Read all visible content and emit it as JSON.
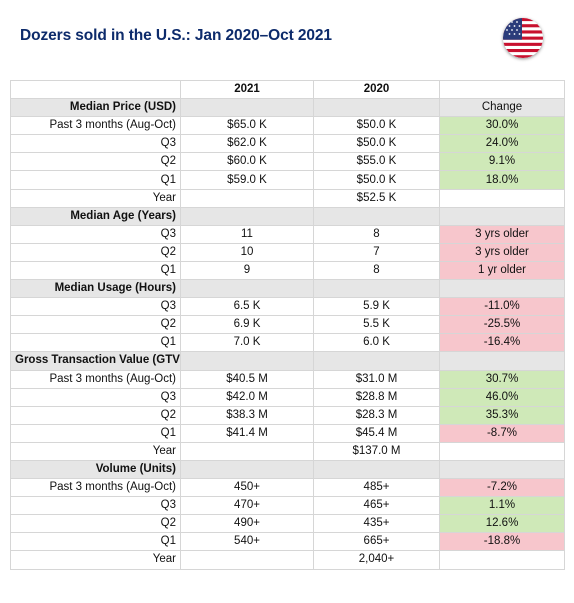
{
  "title": "Dozers sold in the U.S.: Jan 2020–Oct 2021",
  "icons": {
    "flag": "us-flag-icon"
  },
  "colors": {
    "title": "#0d2b6b",
    "positive": "#cfe9b8",
    "negative": "#f7c6cc",
    "section": "#e6e6e6"
  },
  "columns": [
    "",
    "2021",
    "2020",
    ""
  ],
  "change_label": "Change",
  "sections": [
    {
      "title": "Median Price (USD)",
      "align": "right",
      "show_change_label": true,
      "rows": [
        {
          "label": "Past 3 months (Aug-Oct)",
          "y2021": "$65.0 K",
          "y2020": "$50.0 K",
          "change": "30.0%",
          "tone": "pos"
        },
        {
          "label": "Q3",
          "y2021": "$62.0 K",
          "y2020": "$50.0 K",
          "change": "24.0%",
          "tone": "pos"
        },
        {
          "label": "Q2",
          "y2021": "$60.0 K",
          "y2020": "$55.0 K",
          "change": "9.1%",
          "tone": "pos"
        },
        {
          "label": "Q1",
          "y2021": "$59.0 K",
          "y2020": "$50.0 K",
          "change": "18.0%",
          "tone": "pos"
        },
        {
          "label": "Year",
          "y2021": "",
          "y2020": "$52.5 K",
          "change": "",
          "tone": ""
        }
      ]
    },
    {
      "title": "Median Age (Years)",
      "align": "right",
      "show_change_label": false,
      "rows": [
        {
          "label": "Q3",
          "y2021": "11",
          "y2020": "8",
          "change": "3 yrs older",
          "tone": "neg"
        },
        {
          "label": "Q2",
          "y2021": "10",
          "y2020": "7",
          "change": "3 yrs older",
          "tone": "neg"
        },
        {
          "label": "Q1",
          "y2021": "9",
          "y2020": "8",
          "change": "1 yr older",
          "tone": "neg"
        }
      ]
    },
    {
      "title": "Median Usage (Hours)",
      "align": "right",
      "show_change_label": false,
      "rows": [
        {
          "label": "Q3",
          "y2021": "6.5 K",
          "y2020": "5.9 K",
          "change": "-11.0%",
          "tone": "neg"
        },
        {
          "label": "Q2",
          "y2021": "6.9 K",
          "y2020": "5.5 K",
          "change": "-25.5%",
          "tone": "neg"
        },
        {
          "label": "Q1",
          "y2021": "7.0 K",
          "y2020": "6.0 K",
          "change": "-16.4%",
          "tone": "neg"
        }
      ]
    },
    {
      "title": "Gross Transaction Value (GTV)",
      "align": "left",
      "show_change_label": false,
      "rows": [
        {
          "label": "Past 3 months (Aug-Oct)",
          "y2021": "$40.5 M",
          "y2020": "$31.0 M",
          "change": "30.7%",
          "tone": "pos"
        },
        {
          "label": "Q3",
          "y2021": "$42.0 M",
          "y2020": "$28.8 M",
          "change": "46.0%",
          "tone": "pos"
        },
        {
          "label": "Q2",
          "y2021": "$38.3 M",
          "y2020": "$28.3 M",
          "change": "35.3%",
          "tone": "pos"
        },
        {
          "label": "Q1",
          "y2021": "$41.4 M",
          "y2020": "$45.4 M",
          "change": "-8.7%",
          "tone": "neg"
        },
        {
          "label": "Year",
          "y2021": "",
          "y2020": "$137.0 M",
          "change": "",
          "tone": ""
        }
      ]
    },
    {
      "title": "Volume (Units)",
      "align": "right",
      "show_change_label": false,
      "rows": [
        {
          "label": "Past 3 months (Aug-Oct)",
          "y2021": "450+",
          "y2020": "485+",
          "change": "-7.2%",
          "tone": "neg"
        },
        {
          "label": "Q3",
          "y2021": "470+",
          "y2020": "465+",
          "change": "1.1%",
          "tone": "pos"
        },
        {
          "label": "Q2",
          "y2021": "490+",
          "y2020": "435+",
          "change": "12.6%",
          "tone": "pos"
        },
        {
          "label": "Q1",
          "y2021": "540+",
          "y2020": "665+",
          "change": "-18.8%",
          "tone": "neg"
        },
        {
          "label": "Year",
          "y2021": "",
          "y2020": "2,040+",
          "change": "",
          "tone": ""
        }
      ]
    }
  ]
}
